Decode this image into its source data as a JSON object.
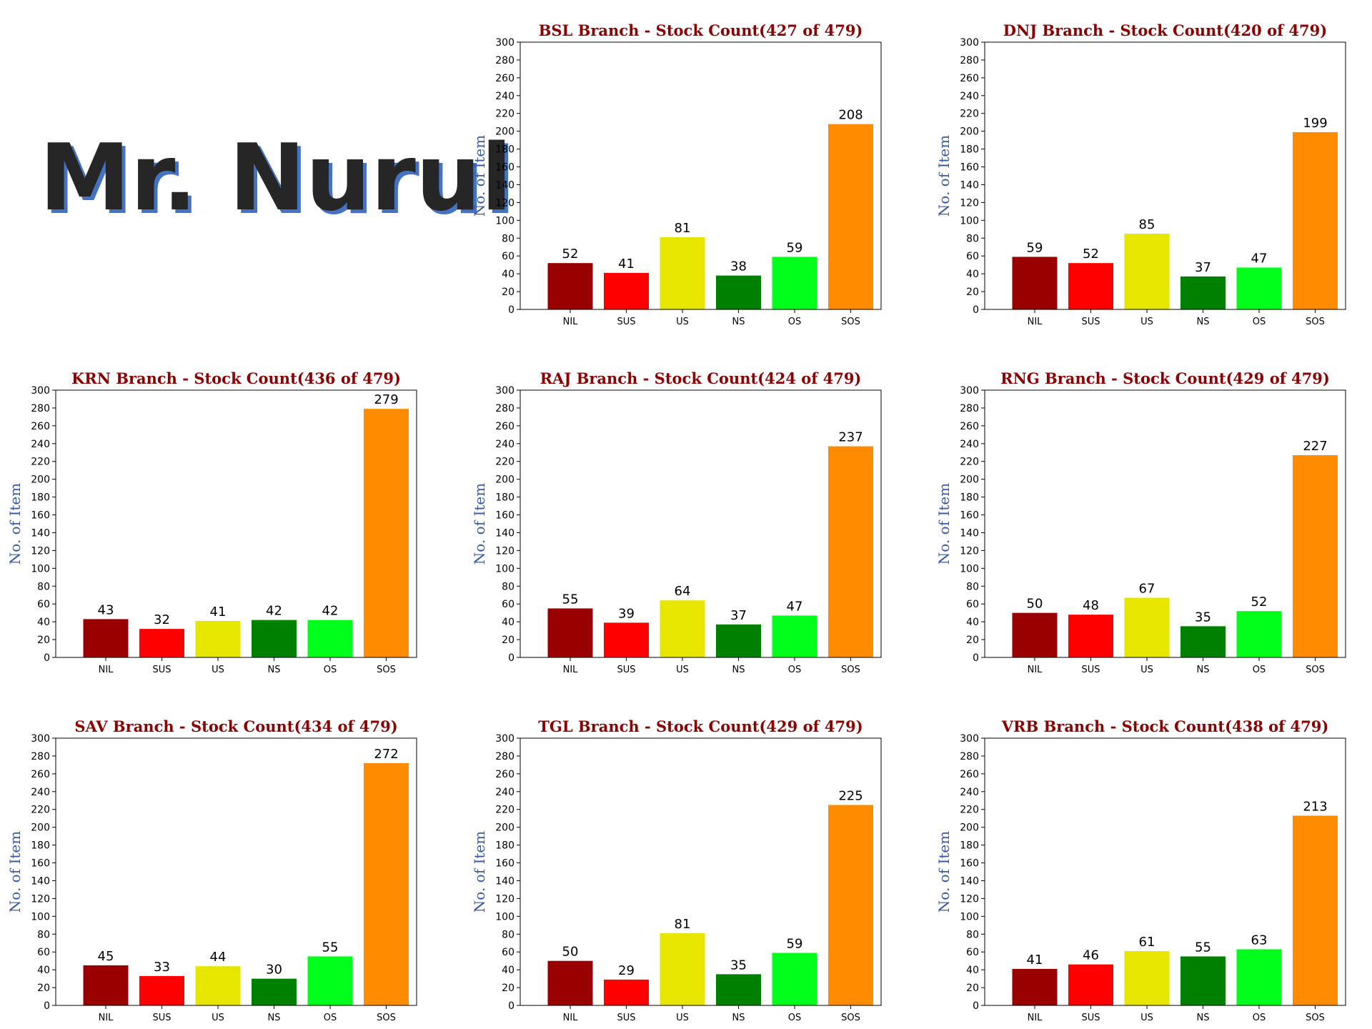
{
  "heading": "Mr. Nurul",
  "colors": {
    "title": "#8b0000",
    "ylabel": "#3a5a9c",
    "bars": [
      "#990000",
      "#ff0000",
      "#e6e600",
      "#008000",
      "#00ff1a",
      "#ff8c00"
    ]
  },
  "chart_data": [
    {
      "type": "bar",
      "title": "BSL Branch - Stock Count(427 of 479)",
      "ylabel": "No. of Item",
      "xlabel": "",
      "categories": [
        "NIL",
        "SUS",
        "US",
        "NS",
        "OS",
        "SOS"
      ],
      "values": [
        52,
        41,
        81,
        38,
        59,
        208
      ],
      "ylim": [
        0,
        300
      ],
      "yticks": [
        0,
        20,
        40,
        60,
        80,
        100,
        120,
        140,
        160,
        180,
        200,
        220,
        240,
        260,
        280,
        300
      ],
      "grid": false
    },
    {
      "type": "bar",
      "title": "DNJ Branch - Stock Count(420 of 479)",
      "ylabel": "No. of Item",
      "xlabel": "",
      "categories": [
        "NIL",
        "SUS",
        "US",
        "NS",
        "OS",
        "SOS"
      ],
      "values": [
        59,
        52,
        85,
        37,
        47,
        199
      ],
      "ylim": [
        0,
        300
      ],
      "yticks": [
        0,
        20,
        40,
        60,
        80,
        100,
        120,
        140,
        160,
        180,
        200,
        220,
        240,
        260,
        280,
        300
      ],
      "grid": false
    },
    {
      "type": "bar",
      "title": "KRN Branch - Stock Count(436 of 479)",
      "ylabel": "No. of Item",
      "xlabel": "",
      "categories": [
        "NIL",
        "SUS",
        "US",
        "NS",
        "OS",
        "SOS"
      ],
      "values": [
        43,
        32,
        41,
        42,
        42,
        279
      ],
      "ylim": [
        0,
        300
      ],
      "yticks": [
        0,
        20,
        40,
        60,
        80,
        100,
        120,
        140,
        160,
        180,
        200,
        220,
        240,
        260,
        280,
        300
      ],
      "grid": false
    },
    {
      "type": "bar",
      "title": "RAJ Branch - Stock Count(424 of 479)",
      "ylabel": "No. of Item",
      "xlabel": "",
      "categories": [
        "NIL",
        "SUS",
        "US",
        "NS",
        "OS",
        "SOS"
      ],
      "values": [
        55,
        39,
        64,
        37,
        47,
        237
      ],
      "ylim": [
        0,
        300
      ],
      "yticks": [
        0,
        20,
        40,
        60,
        80,
        100,
        120,
        140,
        160,
        180,
        200,
        220,
        240,
        260,
        280,
        300
      ],
      "grid": false
    },
    {
      "type": "bar",
      "title": "RNG Branch - Stock Count(429 of 479)",
      "ylabel": "No. of Item",
      "xlabel": "",
      "categories": [
        "NIL",
        "SUS",
        "US",
        "NS",
        "OS",
        "SOS"
      ],
      "values": [
        50,
        48,
        67,
        35,
        52,
        227
      ],
      "ylim": [
        0,
        300
      ],
      "yticks": [
        0,
        20,
        40,
        60,
        80,
        100,
        120,
        140,
        160,
        180,
        200,
        220,
        240,
        260,
        280,
        300
      ],
      "grid": false
    },
    {
      "type": "bar",
      "title": "SAV Branch - Stock Count(434 of 479)",
      "ylabel": "No. of Item",
      "xlabel": "",
      "categories": [
        "NIL",
        "SUS",
        "US",
        "NS",
        "OS",
        "SOS"
      ],
      "values": [
        45,
        33,
        44,
        30,
        55,
        272
      ],
      "ylim": [
        0,
        300
      ],
      "yticks": [
        0,
        20,
        40,
        60,
        80,
        100,
        120,
        140,
        160,
        180,
        200,
        220,
        240,
        260,
        280,
        300
      ],
      "grid": false
    },
    {
      "type": "bar",
      "title": "TGL Branch - Stock Count(429 of 479)",
      "ylabel": "No. of Item",
      "xlabel": "",
      "categories": [
        "NIL",
        "SUS",
        "US",
        "NS",
        "OS",
        "SOS"
      ],
      "values": [
        50,
        29,
        81,
        35,
        59,
        225
      ],
      "ylim": [
        0,
        300
      ],
      "yticks": [
        0,
        20,
        40,
        60,
        80,
        100,
        120,
        140,
        160,
        180,
        200,
        220,
        240,
        260,
        280,
        300
      ],
      "grid": false
    },
    {
      "type": "bar",
      "title": "VRB Branch - Stock Count(438 of 479)",
      "ylabel": "No. of Item",
      "xlabel": "",
      "categories": [
        "NIL",
        "SUS",
        "US",
        "NS",
        "OS",
        "SOS"
      ],
      "values": [
        41,
        46,
        61,
        55,
        63,
        213
      ],
      "ylim": [
        0,
        300
      ],
      "yticks": [
        0,
        20,
        40,
        60,
        80,
        100,
        120,
        140,
        160,
        180,
        200,
        220,
        240,
        260,
        280,
        300
      ],
      "grid": false
    }
  ]
}
